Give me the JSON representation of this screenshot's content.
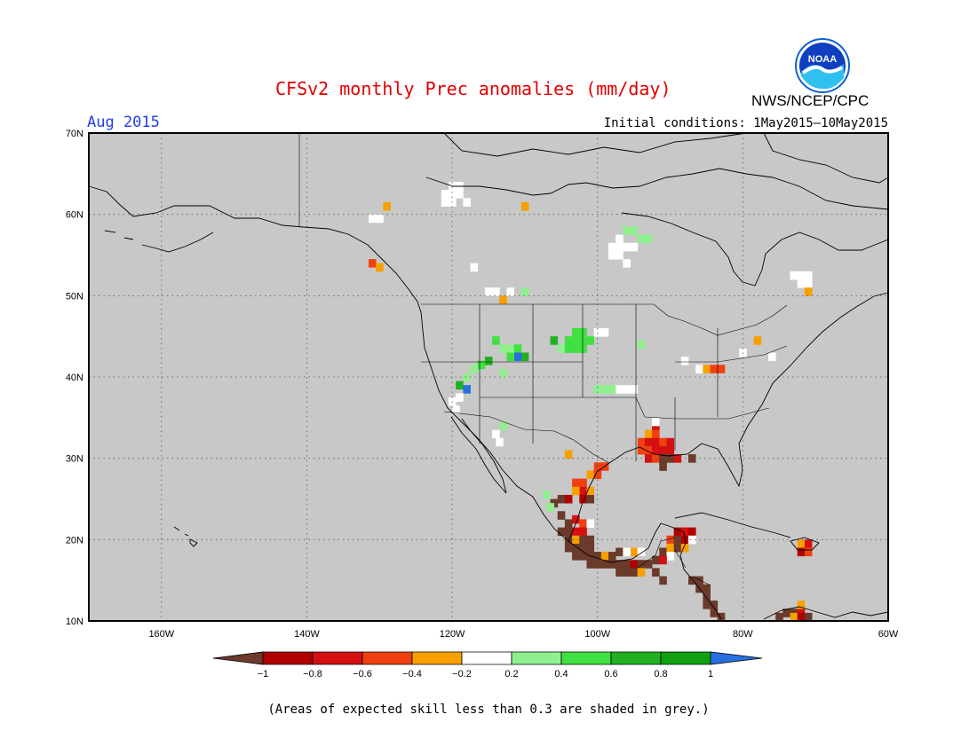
{
  "title": "CFSv2 monthly Prec anomalies (mm/day)",
  "organization": "NWS/NCEP/CPC",
  "logo_text": "NOAA",
  "valid_month": "Aug 2015",
  "initial_conditions": "Initial conditions: 1May2015—10May2015",
  "note": "(Areas of expected skill less than 0.3 are shaded in grey.)",
  "map": {
    "lon_range": [
      -170,
      -60
    ],
    "lat_range": [
      10,
      70
    ],
    "background_color": "#c8c8c8",
    "lat_labels": [
      "70N",
      "60N",
      "50N",
      "40N",
      "30N",
      "20N",
      "10N"
    ],
    "lon_labels": [
      "160W",
      "140W",
      "120W",
      "100W",
      "80W",
      "60W"
    ]
  },
  "colorbar": {
    "labels": [
      "−1",
      "−0.8",
      "−0.6",
      "−0.4",
      "−0.2",
      "0.2",
      "0.4",
      "0.6",
      "0.8",
      "1"
    ],
    "colors": [
      "#6b3a2a",
      "#b00000",
      "#d41010",
      "#f04010",
      "#f8a000",
      "#ffffff",
      "#90f090",
      "#40e040",
      "#20b020",
      "#10a010",
      "#2870e0"
    ]
  },
  "anomaly_cells": [
    {
      "lon": -129,
      "lat": 61,
      "v": -0.3
    },
    {
      "lon": -130,
      "lat": 59.5,
      "v": 0.1
    },
    {
      "lon": -131,
      "lat": 59.5,
      "v": 0.1
    },
    {
      "lon": -131,
      "lat": 54,
      "v": -0.5
    },
    {
      "lon": -130,
      "lat": 53.5,
      "v": -0.3
    },
    {
      "lon": -120,
      "lat": 63.5,
      "v": 0.1
    },
    {
      "lon": -119,
      "lat": 63.5,
      "v": 0.1
    },
    {
      "lon": -120,
      "lat": 62.5,
      "v": 0.1
    },
    {
      "lon": -121,
      "lat": 62.5,
      "v": 0.1
    },
    {
      "lon": -119,
      "lat": 62.5,
      "v": 0.1
    },
    {
      "lon": -118,
      "lat": 61.5,
      "v": 0.1
    },
    {
      "lon": -120,
      "lat": 61.5,
      "v": 0.1
    },
    {
      "lon": -121,
      "lat": 61.5,
      "v": 0.1
    },
    {
      "lon": -110,
      "lat": 61,
      "v": -0.3
    },
    {
      "lon": -117,
      "lat": 53.5,
      "v": 0.1
    },
    {
      "lon": -115,
      "lat": 50.5,
      "v": 0.1
    },
    {
      "lon": -114,
      "lat": 50.5,
      "v": 0.1
    },
    {
      "lon": -113,
      "lat": 49.5,
      "v": -0.3
    },
    {
      "lon": -112,
      "lat": 50.5,
      "v": 0.1
    },
    {
      "lon": -110,
      "lat": 50.5,
      "v": 0.3
    },
    {
      "lon": -96,
      "lat": 58,
      "v": 0.3
    },
    {
      "lon": -95,
      "lat": 58,
      "v": 0.3
    },
    {
      "lon": -94,
      "lat": 57,
      "v": 0.3
    },
    {
      "lon": -93,
      "lat": 57,
      "v": 0.3
    },
    {
      "lon": -97,
      "lat": 57,
      "v": 0.1
    },
    {
      "lon": -98,
      "lat": 56,
      "v": 0.1
    },
    {
      "lon": -97,
      "lat": 56,
      "v": 0.1
    },
    {
      "lon": -96,
      "lat": 56,
      "v": 0.1
    },
    {
      "lon": -95,
      "lat": 56,
      "v": 0.1
    },
    {
      "lon": -98,
      "lat": 55,
      "v": 0.1
    },
    {
      "lon": -97,
      "lat": 55,
      "v": 0.1
    },
    {
      "lon": -96,
      "lat": 54,
      "v": 0.1
    },
    {
      "lon": -73,
      "lat": 52.5,
      "v": 0.1
    },
    {
      "lon": -72,
      "lat": 52.5,
      "v": 0.1
    },
    {
      "lon": -71,
      "lat": 52.5,
      "v": 0.1
    },
    {
      "lon": -72,
      "lat": 51.5,
      "v": 0.1
    },
    {
      "lon": -71,
      "lat": 51.5,
      "v": 0.1
    },
    {
      "lon": -71,
      "lat": 50.5,
      "v": -0.3
    },
    {
      "lon": -114,
      "lat": 44.5,
      "v": 0.5
    },
    {
      "lon": -113,
      "lat": 43.5,
      "v": 0.3
    },
    {
      "lon": -112,
      "lat": 43.5,
      "v": 0.3
    },
    {
      "lon": -111,
      "lat": 43.5,
      "v": 0.5
    },
    {
      "lon": -110,
      "lat": 42.5,
      "v": 0.7
    },
    {
      "lon": -111,
      "lat": 42.5,
      "v": 1.1
    },
    {
      "lon": -112,
      "lat": 42.5,
      "v": 0.5
    },
    {
      "lon": -115,
      "lat": 42,
      "v": 0.7
    },
    {
      "lon": -116,
      "lat": 41.5,
      "v": 0.5
    },
    {
      "lon": -117,
      "lat": 41,
      "v": 0.3
    },
    {
      "lon": -118,
      "lat": 40,
      "v": 0.3
    },
    {
      "lon": -119,
      "lat": 39,
      "v": 0.7
    },
    {
      "lon": -118,
      "lat": 38.5,
      "v": 1.1
    },
    {
      "lon": -119,
      "lat": 37.5,
      "v": 0.1
    },
    {
      "lon": -120,
      "lat": 37,
      "v": 0.1
    },
    {
      "lon": -119.5,
      "lat": 36,
      "v": 0.1
    },
    {
      "lon": -113,
      "lat": 40.5,
      "v": 0.3
    },
    {
      "lon": -113,
      "lat": 34,
      "v": 0.3
    },
    {
      "lon": -114,
      "lat": 33,
      "v": 0.1
    },
    {
      "lon": -113.5,
      "lat": 32,
      "v": 0.1
    },
    {
      "lon": -103,
      "lat": 45.5,
      "v": 0.5
    },
    {
      "lon": -102,
      "lat": 45.5,
      "v": 0.5
    },
    {
      "lon": -104,
      "lat": 44.5,
      "v": 0.5
    },
    {
      "lon": -103,
      "lat": 44.5,
      "v": 0.5
    },
    {
      "lon": -102,
      "lat": 44.5,
      "v": 0.5
    },
    {
      "lon": -105,
      "lat": 43.5,
      "v": 0.3
    },
    {
      "lon": -104,
      "lat": 43.5,
      "v": 0.5
    },
    {
      "lon": -103,
      "lat": 43.5,
      "v": 0.5
    },
    {
      "lon": -102,
      "lat": 43.5,
      "v": 0.5
    },
    {
      "lon": -101,
      "lat": 44.5,
      "v": 0.5
    },
    {
      "lon": -106,
      "lat": 44.5,
      "v": 0.7
    },
    {
      "lon": -100,
      "lat": 45.5,
      "v": 0.1
    },
    {
      "lon": -99,
      "lat": 45.5,
      "v": 0.1
    },
    {
      "lon": -94,
      "lat": 44,
      "v": 0.3
    },
    {
      "lon": -100,
      "lat": 38.5,
      "v": 0.3
    },
    {
      "lon": -99,
      "lat": 38.5,
      "v": 0.3
    },
    {
      "lon": -98,
      "lat": 38.5,
      "v": 0.3
    },
    {
      "lon": -97,
      "lat": 38.5,
      "v": 0.1
    },
    {
      "lon": -96,
      "lat": 38.5,
      "v": 0.1
    },
    {
      "lon": -95,
      "lat": 38.5,
      "v": 0.1
    },
    {
      "lon": -86,
      "lat": 41,
      "v": 0.1
    },
    {
      "lon": -88,
      "lat": 42,
      "v": 0.1
    },
    {
      "lon": -85,
      "lat": 41,
      "v": -0.3
    },
    {
      "lon": -84,
      "lat": 41,
      "v": -0.5
    },
    {
      "lon": -83,
      "lat": 41,
      "v": -0.5
    },
    {
      "lon": -78,
      "lat": 44.5,
      "v": -0.3
    },
    {
      "lon": -80,
      "lat": 43,
      "v": 0.1
    },
    {
      "lon": -76,
      "lat": 42.5,
      "v": 0.1
    },
    {
      "lon": -92,
      "lat": 34,
      "v": -0.7
    },
    {
      "lon": -93,
      "lat": 33,
      "v": -0.3
    },
    {
      "lon": -92,
      "lat": 33,
      "v": -0.5
    },
    {
      "lon": -94,
      "lat": 32,
      "v": -0.5
    },
    {
      "lon": -93,
      "lat": 32,
      "v": -0.7
    },
    {
      "lon": -92,
      "lat": 32,
      "v": -0.7
    },
    {
      "lon": -91,
      "lat": 32,
      "v": -0.5
    },
    {
      "lon": -90,
      "lat": 32,
      "v": -0.7
    },
    {
      "lon": -94,
      "lat": 31,
      "v": -0.5
    },
    {
      "lon": -93,
      "lat": 31,
      "v": -0.5
    },
    {
      "lon": -92,
      "lat": 31,
      "v": -0.7
    },
    {
      "lon": -91,
      "lat": 31,
      "v": -0.7
    },
    {
      "lon": -90,
      "lat": 31,
      "v": -0.7
    },
    {
      "lon": -93,
      "lat": 30,
      "v": -0.7
    },
    {
      "lon": -92,
      "lat": 30,
      "v": -0.5
    },
    {
      "lon": -91,
      "lat": 30,
      "v": -1.1
    },
    {
      "lon": -90,
      "lat": 30,
      "v": -1.1
    },
    {
      "lon": -89,
      "lat": 30,
      "v": -0.7
    },
    {
      "lon": -87,
      "lat": 30,
      "v": -1.1
    },
    {
      "lon": -91,
      "lat": 29,
      "v": -1.1
    },
    {
      "lon": -92,
      "lat": 34.5,
      "v": 0.1
    },
    {
      "lon": -104,
      "lat": 30.5,
      "v": -0.3
    },
    {
      "lon": -100,
      "lat": 29,
      "v": -0.5
    },
    {
      "lon": -99,
      "lat": 29,
      "v": -0.5
    },
    {
      "lon": -101,
      "lat": 28,
      "v": -0.3
    },
    {
      "lon": -100,
      "lat": 28,
      "v": -0.5
    },
    {
      "lon": -103,
      "lat": 27,
      "v": -0.5
    },
    {
      "lon": -102,
      "lat": 27,
      "v": -0.5
    },
    {
      "lon": -102,
      "lat": 26,
      "v": -0.7
    },
    {
      "lon": -101,
      "lat": 26,
      "v": -0.3
    },
    {
      "lon": -103,
      "lat": 26,
      "v": -0.3
    },
    {
      "lon": -102,
      "lat": 25,
      "v": -0.9
    },
    {
      "lon": -101,
      "lat": 25,
      "v": -1.1
    },
    {
      "lon": -107,
      "lat": 25.5,
      "v": 0.3
    },
    {
      "lon": -106,
      "lat": 24.5,
      "v": -1.1
    },
    {
      "lon": -105,
      "lat": 25,
      "v": -1.1
    },
    {
      "lon": -106.5,
      "lat": 24,
      "v": 0.3
    },
    {
      "lon": -104,
      "lat": 25,
      "v": -0.9
    },
    {
      "lon": -105,
      "lat": 23,
      "v": -1.1
    },
    {
      "lon": -103,
      "lat": 22.5,
      "v": -0.7
    },
    {
      "lon": -102,
      "lat": 22,
      "v": -0.5
    },
    {
      "lon": -101,
      "lat": 22,
      "v": 0.1
    },
    {
      "lon": -104,
      "lat": 22,
      "v": -1.1
    },
    {
      "lon": -105,
      "lat": 21,
      "v": -1.1
    },
    {
      "lon": -104,
      "lat": 21,
      "v": -1.1
    },
    {
      "lon": -103,
      "lat": 21,
      "v": -0.7
    },
    {
      "lon": -102,
      "lat": 21,
      "v": -0.7
    },
    {
      "lon": -104,
      "lat": 20,
      "v": -1.1
    },
    {
      "lon": -103,
      "lat": 20,
      "v": -0.3
    },
    {
      "lon": -102,
      "lat": 20,
      "v": -1.1
    },
    {
      "lon": -101,
      "lat": 20,
      "v": -1.1
    },
    {
      "lon": -104,
      "lat": 19,
      "v": -1.1
    },
    {
      "lon": -103,
      "lat": 19,
      "v": -1.1
    },
    {
      "lon": -102,
      "lat": 19,
      "v": -1.1
    },
    {
      "lon": -101,
      "lat": 19,
      "v": -1.1
    },
    {
      "lon": -103,
      "lat": 18,
      "v": -1.1
    },
    {
      "lon": -102,
      "lat": 18,
      "v": -1.1
    },
    {
      "lon": -101,
      "lat": 18,
      "v": -1.1
    },
    {
      "lon": -100,
      "lat": 18,
      "v": -1.1
    },
    {
      "lon": -99,
      "lat": 18,
      "v": -0.3
    },
    {
      "lon": -98,
      "lat": 18,
      "v": -1.1
    },
    {
      "lon": -101,
      "lat": 17,
      "v": -1.1
    },
    {
      "lon": -100,
      "lat": 17,
      "v": -1.1
    },
    {
      "lon": -99,
      "lat": 17,
      "v": -1.1
    },
    {
      "lon": -98,
      "lat": 17,
      "v": -1.1
    },
    {
      "lon": -97,
      "lat": 17,
      "v": -1.1
    },
    {
      "lon": -96,
      "lat": 17,
      "v": -1.1
    },
    {
      "lon": -95,
      "lat": 17,
      "v": -0.9
    },
    {
      "lon": -94,
      "lat": 17,
      "v": -1.1
    },
    {
      "lon": -93,
      "lat": 17,
      "v": -1.1
    },
    {
      "lon": -92,
      "lat": 17.5,
      "v": -1.1
    },
    {
      "lon": -97,
      "lat": 16,
      "v": -1.1
    },
    {
      "lon": -96,
      "lat": 16,
      "v": -1.1
    },
    {
      "lon": -95,
      "lat": 16,
      "v": -1.1
    },
    {
      "lon": -94,
      "lat": 16,
      "v": -0.3
    },
    {
      "lon": -92,
      "lat": 16,
      "v": -1.1
    },
    {
      "lon": -91,
      "lat": 15,
      "v": -1.1
    },
    {
      "lon": -97,
      "lat": 18.5,
      "v": -1.1
    },
    {
      "lon": -95,
      "lat": 18.5,
      "v": -0.3
    },
    {
      "lon": -94,
      "lat": 18.5,
      "v": 0.1
    },
    {
      "lon": -91,
      "lat": 18.5,
      "v": -1.1
    },
    {
      "lon": -96,
      "lat": 18.5,
      "v": 0.1
    },
    {
      "lon": -90,
      "lat": 20,
      "v": -0.5
    },
    {
      "lon": -89,
      "lat": 20,
      "v": -1.1
    },
    {
      "lon": -88,
      "lat": 20,
      "v": -0.9
    },
    {
      "lon": -89,
      "lat": 21,
      "v": -0.9
    },
    {
      "lon": -88,
      "lat": 21,
      "v": -0.7
    },
    {
      "lon": -87,
      "lat": 21,
      "v": -0.9
    },
    {
      "lon": -90,
      "lat": 19,
      "v": -0.3
    },
    {
      "lon": -89,
      "lat": 19,
      "v": -1.1
    },
    {
      "lon": -88,
      "lat": 19,
      "v": -0.3
    },
    {
      "lon": -87,
      "lat": 20,
      "v": 0.1
    },
    {
      "lon": -90,
      "lat": 18,
      "v": 0.1
    },
    {
      "lon": -91,
      "lat": 17.5,
      "v": -0.7
    },
    {
      "lon": -87,
      "lat": 15,
      "v": -1.1
    },
    {
      "lon": -86,
      "lat": 15,
      "v": -1.1
    },
    {
      "lon": -85,
      "lat": 14,
      "v": -1.1
    },
    {
      "lon": -86,
      "lat": 14,
      "v": -1.1
    },
    {
      "lon": -85,
      "lat": 13,
      "v": -1.1
    },
    {
      "lon": -84,
      "lat": 12,
      "v": -1.1
    },
    {
      "lon": -85,
      "lat": 12,
      "v": -1.1
    },
    {
      "lon": -84,
      "lat": 11,
      "v": -1.1
    },
    {
      "lon": -83,
      "lat": 10.5,
      "v": -1.1
    },
    {
      "lon": -74,
      "lat": 11,
      "v": -1.1
    },
    {
      "lon": -73,
      "lat": 11,
      "v": -1.1
    },
    {
      "lon": -72,
      "lat": 11,
      "v": -0.7
    },
    {
      "lon": -73,
      "lat": 10.5,
      "v": -0.3
    },
    {
      "lon": -72,
      "lat": 10.5,
      "v": -0.9
    },
    {
      "lon": -75,
      "lat": 10.5,
      "v": -1.1
    },
    {
      "lon": -71,
      "lat": 10.5,
      "v": -1.1
    },
    {
      "lon": -72,
      "lat": 12,
      "v": -0.3
    },
    {
      "lon": -72,
      "lat": 19.5,
      "v": -0.3
    },
    {
      "lon": -71,
      "lat": 19.5,
      "v": -0.7
    },
    {
      "lon": -72,
      "lat": 18.5,
      "v": -0.9
    },
    {
      "lon": -71,
      "lat": 18.5,
      "v": -0.5
    }
  ]
}
